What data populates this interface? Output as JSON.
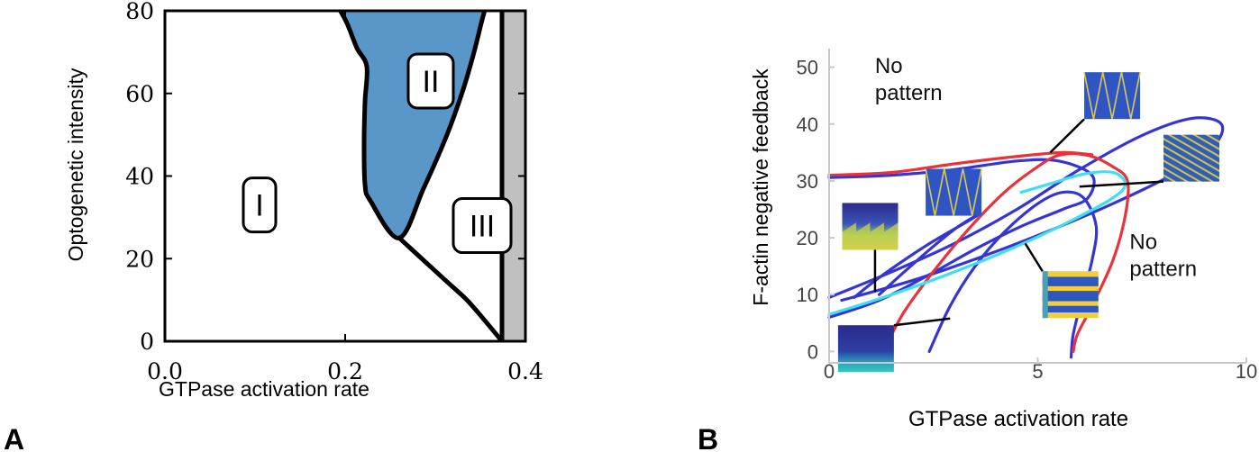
{
  "panels": {
    "a": {
      "letter": "A"
    },
    "b": {
      "letter": "B"
    }
  },
  "chart_data": [
    {
      "type": "area",
      "panel": "A",
      "title": "",
      "xlabel": "GTPase activation rate",
      "ylabel": "Optogenetic  intensity",
      "xlim": [
        0.0,
        0.4
      ],
      "ylim": [
        0,
        80
      ],
      "xticks": [
        "0.0",
        "0.2",
        "0.4"
      ],
      "yticks": [
        "0",
        "20",
        "40",
        "60",
        "80"
      ],
      "colors": {
        "region_II": "#5a97c9",
        "excluded_band": "#c0c0c0",
        "boundary": "#000000"
      },
      "regions": [
        {
          "label": "I",
          "label_at": {
            "x": 0.105,
            "y": 33
          },
          "boundary": []
        },
        {
          "label": "II",
          "label_at": {
            "x": 0.295,
            "y": 63
          },
          "boundary": [
            {
              "x": 0.192,
              "y": 81
            },
            {
              "x": 0.202,
              "y": 77
            },
            {
              "x": 0.213,
              "y": 71
            },
            {
              "x": 0.224,
              "y": 66.5
            },
            {
              "x": 0.222,
              "y": 58
            },
            {
              "x": 0.221,
              "y": 48
            },
            {
              "x": 0.222,
              "y": 38
            },
            {
              "x": 0.228,
              "y": 34
            },
            {
              "x": 0.26,
              "y": 25
            },
            {
              "x": 0.287,
              "y": 37
            },
            {
              "x": 0.313,
              "y": 50
            },
            {
              "x": 0.331,
              "y": 61
            },
            {
              "x": 0.343,
              "y": 70
            },
            {
              "x": 0.351,
              "y": 77
            },
            {
              "x": 0.356,
              "y": 81
            }
          ]
        },
        {
          "label": "III",
          "label_at": {
            "x": 0.352,
            "y": 28
          },
          "boundary": []
        }
      ],
      "curves": [
        {
          "role": "lower-boundary",
          "points": [
            {
              "x": 0.26,
              "y": 25
            },
            {
              "x": 0.285,
              "y": 20
            },
            {
              "x": 0.31,
              "y": 15
            },
            {
              "x": 0.335,
              "y": 10
            },
            {
              "x": 0.355,
              "y": 5
            },
            {
              "x": 0.374,
              "y": 0
            }
          ]
        },
        {
          "role": "right-boundary",
          "points": [
            {
              "x": 0.374,
              "y": 0
            },
            {
              "x": 0.374,
              "y": 80
            }
          ]
        }
      ],
      "excluded_band": {
        "x": [
          0.374,
          0.4
        ]
      }
    },
    {
      "type": "line",
      "panel": "B",
      "title": "",
      "xlabel": "GTPase activation rate",
      "ylabel": "F-actin negative feedback",
      "xlim": [
        0,
        10
      ],
      "ylim": [
        -2,
        52
      ],
      "xticks": [
        "0",
        "5",
        "10"
      ],
      "yticks": [
        "0",
        "10",
        "20",
        "30",
        "40",
        "50"
      ],
      "annotations": [
        {
          "text": [
            "No",
            "pattern"
          ],
          "at": {
            "x": 1.1,
            "y": 49
          }
        },
        {
          "text": [
            "No",
            "pattern"
          ],
          "at": {
            "x": 7.2,
            "y": 18
          }
        }
      ],
      "colors": {
        "red": "#e8333a",
        "blue": "#3535d6",
        "cyan": "#3ee0ee"
      },
      "series": [
        {
          "color": "red",
          "points": [
            {
              "x": 1.3,
              "y": 0
            },
            {
              "x": 1.8,
              "y": 7
            },
            {
              "x": 2.6,
              "y": 15
            },
            {
              "x": 3.4,
              "y": 22
            },
            {
              "x": 4.2,
              "y": 28
            },
            {
              "x": 4.9,
              "y": 32
            },
            {
              "x": 5.5,
              "y": 34.5
            },
            {
              "x": 6.2,
              "y": 34.5
            },
            {
              "x": 6.8,
              "y": 32.5
            },
            {
              "x": 7.15,
              "y": 30
            },
            {
              "x": 7.1,
              "y": 24
            },
            {
              "x": 6.8,
              "y": 16
            },
            {
              "x": 6.3,
              "y": 8
            },
            {
              "x": 5.95,
              "y": 3
            },
            {
              "x": 5.85,
              "y": 0
            }
          ]
        },
        {
          "color": "red",
          "points": [
            {
              "x": 0,
              "y": 31
            },
            {
              "x": 1.5,
              "y": 31.5
            },
            {
              "x": 3,
              "y": 33
            },
            {
              "x": 4.5,
              "y": 34.3
            },
            {
              "x": 5.6,
              "y": 35
            },
            {
              "x": 6.3,
              "y": 34.6
            }
          ]
        },
        {
          "color": "blue",
          "points": [
            {
              "x": 0,
              "y": 30.6
            },
            {
              "x": 1.5,
              "y": 31
            },
            {
              "x": 3,
              "y": 32
            },
            {
              "x": 4.5,
              "y": 33.5
            },
            {
              "x": 5.5,
              "y": 33.5
            },
            {
              "x": 6.3,
              "y": 31
            },
            {
              "x": 6.2,
              "y": 27
            },
            {
              "x": 5.6,
              "y": 25
            },
            {
              "x": 4.6,
              "y": 22
            },
            {
              "x": 3.5,
              "y": 18
            },
            {
              "x": 2.4,
              "y": 13.5
            },
            {
              "x": 1.2,
              "y": 9
            },
            {
              "x": 0,
              "y": 6
            }
          ]
        },
        {
          "color": "blue",
          "points": [
            {
              "x": 0,
              "y": 9.5
            },
            {
              "x": 1.5,
              "y": 14
            },
            {
              "x": 3,
              "y": 19
            },
            {
              "x": 4.5,
              "y": 25
            },
            {
              "x": 6,
              "y": 32
            },
            {
              "x": 7.5,
              "y": 38
            },
            {
              "x": 8.7,
              "y": 41
            },
            {
              "x": 9.4,
              "y": 40
            },
            {
              "x": 9.2,
              "y": 36
            },
            {
              "x": 8.2,
              "y": 31
            },
            {
              "x": 6.8,
              "y": 26
            },
            {
              "x": 5.2,
              "y": 21
            },
            {
              "x": 3.6,
              "y": 16.5
            },
            {
              "x": 2,
              "y": 12.5
            },
            {
              "x": 0.3,
              "y": 9
            }
          ]
        },
        {
          "color": "blue",
          "points": [
            {
              "x": 1.2,
              "y": 10
            },
            {
              "x": 1.8,
              "y": 14
            },
            {
              "x": 2.5,
              "y": 18.5
            },
            {
              "x": 3.1,
              "y": 22
            },
            {
              "x": 3.6,
              "y": 24.2
            },
            {
              "x": 3.3,
              "y": 22.8
            },
            {
              "x": 2.3,
              "y": 18.5
            },
            {
              "x": 1.2,
              "y": 13
            },
            {
              "x": 0.6,
              "y": 9.5
            }
          ]
        },
        {
          "color": "blue",
          "points": [
            {
              "x": 2.4,
              "y": 0
            },
            {
              "x": 2.9,
              "y": 8
            },
            {
              "x": 3.5,
              "y": 15
            },
            {
              "x": 4.2,
              "y": 21
            },
            {
              "x": 5,
              "y": 26
            },
            {
              "x": 5.6,
              "y": 28
            },
            {
              "x": 6.1,
              "y": 27
            },
            {
              "x": 6.4,
              "y": 22
            },
            {
              "x": 6.3,
              "y": 16
            },
            {
              "x": 6.05,
              "y": 9
            },
            {
              "x": 5.85,
              "y": 3
            },
            {
              "x": 5.8,
              "y": -1
            }
          ]
        },
        {
          "color": "cyan",
          "points": [
            {
              "x": 0,
              "y": 6.5
            },
            {
              "x": 1.5,
              "y": 10
            },
            {
              "x": 3,
              "y": 14
            },
            {
              "x": 4.5,
              "y": 18.5
            },
            {
              "x": 5.8,
              "y": 23
            },
            {
              "x": 6.8,
              "y": 27
            },
            {
              "x": 7.1,
              "y": 29.5
            },
            {
              "x": 6.8,
              "y": 31.5
            },
            {
              "x": 6.1,
              "y": 31.2
            },
            {
              "x": 5.3,
              "y": 29.5
            },
            {
              "x": 4.6,
              "y": 28
            }
          ]
        }
      ],
      "insets": [
        {
          "kind": "spikes",
          "at": {
            "x": 0.4,
            "y": 22
          },
          "leader_to": {
            "x": 1.1,
            "y": 10.5
          }
        },
        {
          "kind": "zigzag",
          "at": {
            "x": 2.4,
            "y": 28
          },
          "leader_to": null
        },
        {
          "kind": "zigzag",
          "at": {
            "x": 6.2,
            "y": 45
          },
          "leader_to": {
            "x": 5.3,
            "y": 35
          }
        },
        {
          "kind": "stripes-diagonal",
          "at": {
            "x": 8.1,
            "y": 34
          },
          "leader_to": {
            "x": 6.0,
            "y": 29
          }
        },
        {
          "kind": "stripes-horizontal",
          "at": {
            "x": 5.2,
            "y": 10
          },
          "leader_to": {
            "x": 4.7,
            "y": 19
          }
        },
        {
          "kind": "uniform",
          "at": {
            "x": 0.3,
            "y": 0.5
          },
          "leader_to": {
            "x": 2.9,
            "y": 5.8
          }
        }
      ]
    }
  ]
}
